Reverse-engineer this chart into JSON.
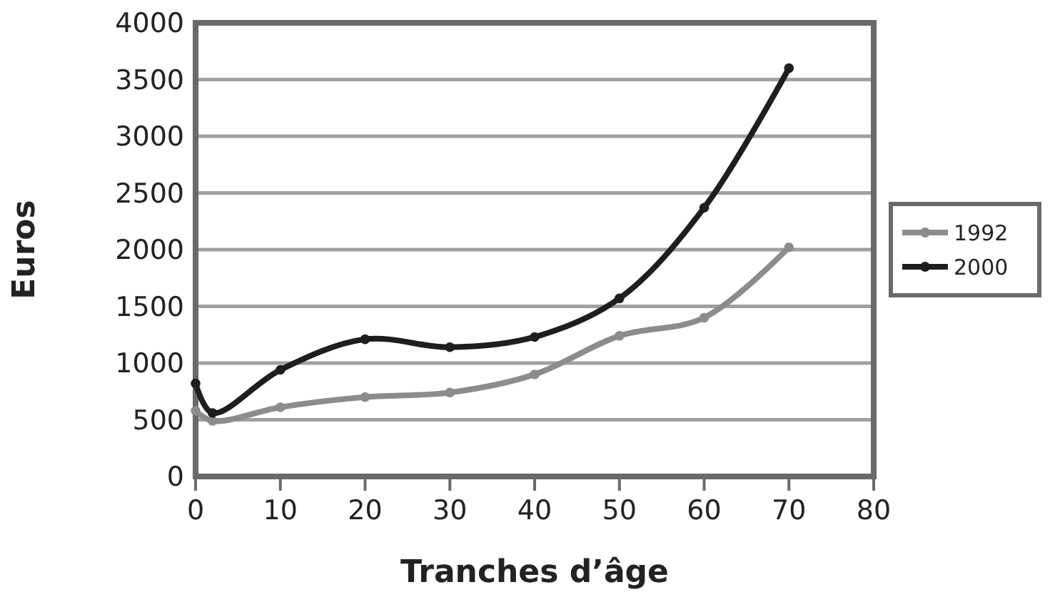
{
  "chart_data": {
    "type": "line",
    "xlabel": "Tranches d’âge",
    "ylabel": "Euros",
    "x": [
      0,
      2,
      10,
      20,
      30,
      40,
      50,
      60,
      70
    ],
    "series": [
      {
        "name": "1992",
        "color": "#8c8c8c",
        "values": [
          580,
          490,
          610,
          700,
          740,
          900,
          1240,
          1400,
          2020
        ]
      },
      {
        "name": "2000",
        "color": "#1e1e1e",
        "values": [
          820,
          560,
          940,
          1210,
          1140,
          1230,
          1570,
          2370,
          3600
        ]
      }
    ],
    "xlim": [
      0,
      80
    ],
    "xticks": [
      0,
      10,
      20,
      30,
      40,
      50,
      60,
      70,
      80
    ],
    "ylim": [
      0,
      4000
    ],
    "yticks": [
      0,
      500,
      1000,
      1500,
      2000,
      2500,
      3000,
      3500,
      4000
    ],
    "grid": "y",
    "legend": "right",
    "marker": "circle",
    "line_style": "solid"
  }
}
